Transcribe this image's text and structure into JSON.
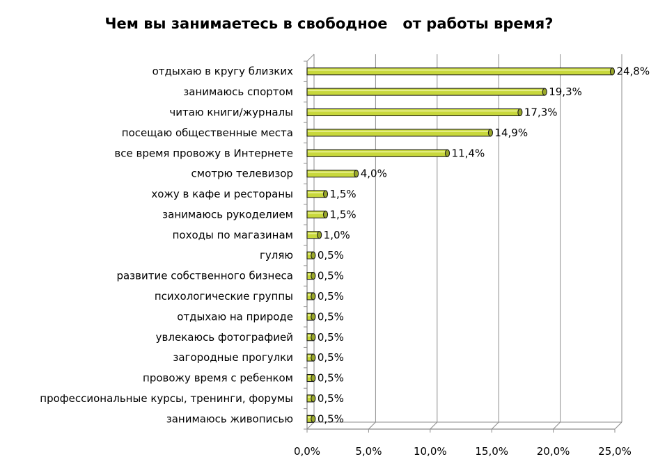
{
  "chart_data": {
    "type": "bar",
    "orientation": "horizontal",
    "title": "Чем вы занимаетесь в свободное   от работы время?",
    "xlabel": "",
    "ylabel": "",
    "xlim": [
      0,
      25
    ],
    "grid": "vertical",
    "legend": "none",
    "bar_color": "#c8d83c",
    "categories": [
      "отдыхаю в кругу близких",
      "занимаюсь спортом",
      "читаю книги/журналы",
      "посещаю общественные места",
      "все время провожу в Интернете",
      "смотрю телевизор",
      "хожу в кафе и рестораны",
      "занимаюсь рукоделием",
      "походы по магазинам",
      "гуляю",
      "развитие собственного бизнеса",
      "психологические группы",
      "отдыхаю на природе",
      "увлекаюсь фотографией",
      "загородные прогулки",
      "провожу время с ребенком",
      "профессиональные курсы, тренинги, форумы",
      "занимаюсь живописью"
    ],
    "values": [
      24.8,
      19.3,
      17.3,
      14.9,
      11.4,
      4.0,
      1.5,
      1.5,
      1.0,
      0.5,
      0.5,
      0.5,
      0.5,
      0.5,
      0.5,
      0.5,
      0.5,
      0.5
    ],
    "value_labels": [
      "24,8%",
      "19,3%",
      "17,3%",
      "14,9%",
      "11,4%",
      "4,0%",
      "1,5%",
      "1,5%",
      "1,0%",
      "0,5%",
      "0,5%",
      "0,5%",
      "0,5%",
      "0,5%",
      "0,5%",
      "0,5%",
      "0,5%",
      "0,5%"
    ],
    "x_ticks": [
      0,
      5,
      10,
      15,
      20,
      25
    ],
    "x_tick_labels": [
      "0,0%",
      "5,0%",
      "10,0%",
      "15,0%",
      "20,0%",
      "25,0%"
    ]
  }
}
